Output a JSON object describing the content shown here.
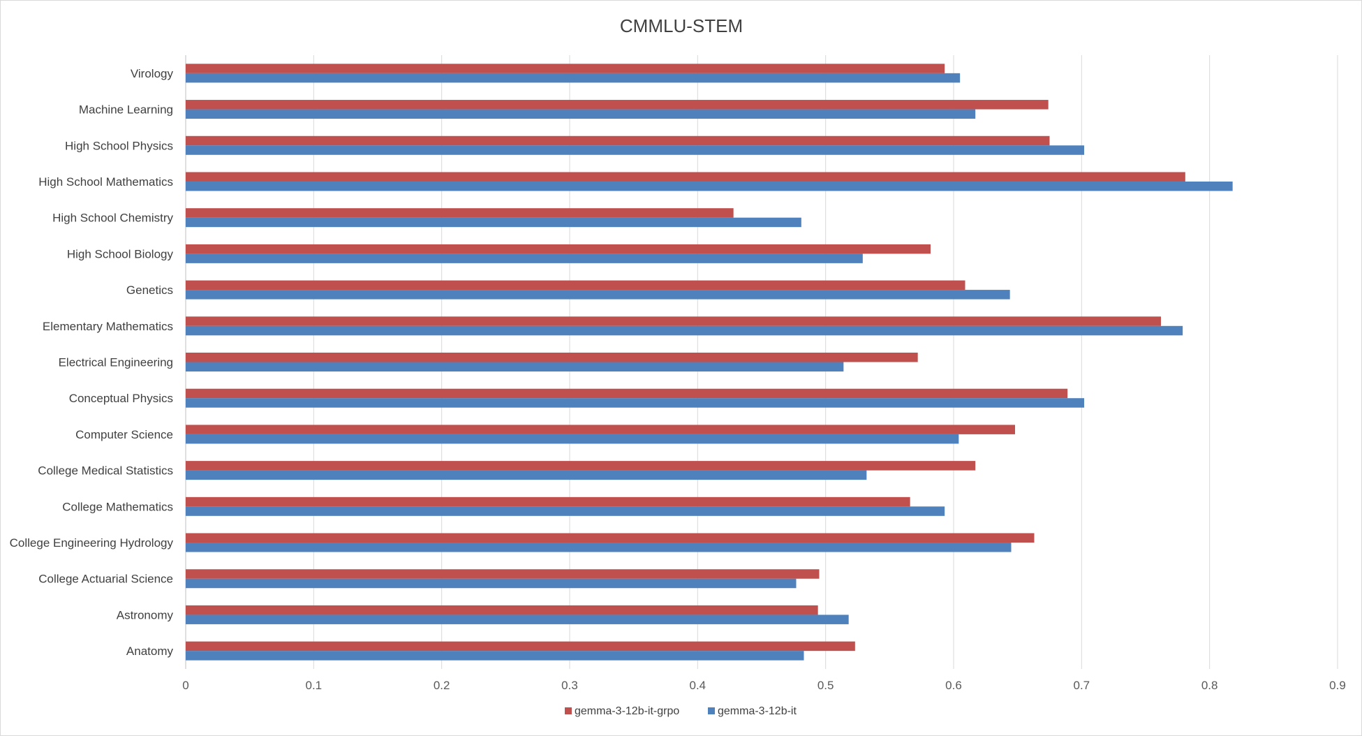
{
  "chart_data": {
    "type": "bar",
    "orientation": "horizontal",
    "title": "CMMLU-STEM",
    "categories": [
      "Virology",
      "Machine Learning",
      "High School Physics",
      "High School Mathematics",
      "High School Chemistry",
      "High School Biology",
      "Genetics",
      "Elementary Mathematics",
      "Electrical Engineering",
      "Conceptual Physics",
      "Computer Science",
      "College Medical Statistics",
      "College Mathematics",
      "College Engineering Hydrology",
      "College Actuarial Science",
      "Astronomy",
      "Anatomy"
    ],
    "series": [
      {
        "name": "gemma-3-12b-it-grpo",
        "color": "#c0504d",
        "values": [
          0.593,
          0.674,
          0.675,
          0.781,
          0.428,
          0.582,
          0.609,
          0.762,
          0.572,
          0.689,
          0.648,
          0.617,
          0.566,
          0.663,
          0.495,
          0.494,
          0.523
        ]
      },
      {
        "name": "gemma-3-12b-it",
        "color": "#4f81bd",
        "values": [
          0.605,
          0.617,
          0.702,
          0.818,
          0.481,
          0.529,
          0.644,
          0.779,
          0.514,
          0.702,
          0.604,
          0.532,
          0.593,
          0.645,
          0.477,
          0.518,
          0.483
        ]
      }
    ],
    "xticks": [
      "0",
      "0.1",
      "0.2",
      "0.3",
      "0.4",
      "0.5",
      "0.6",
      "0.7",
      "0.8",
      "0.9"
    ],
    "xlim": [
      0,
      0.9
    ],
    "grid": true,
    "legend_position": "bottom"
  }
}
